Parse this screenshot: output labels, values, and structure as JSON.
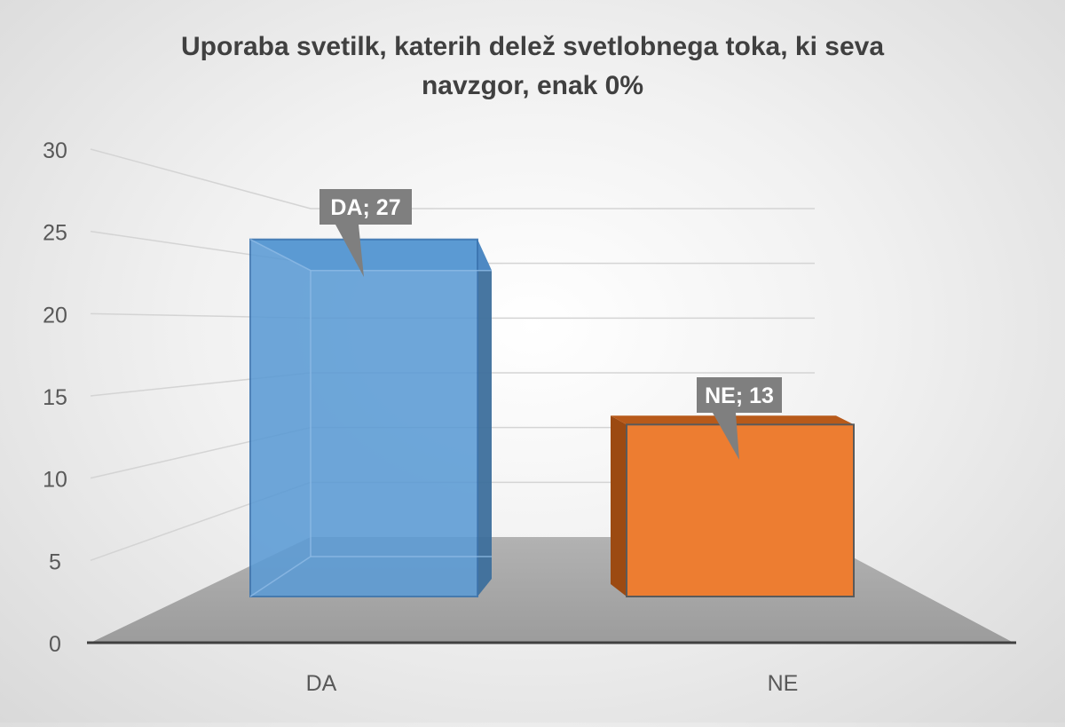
{
  "chart_data": {
    "type": "bar",
    "title": "Uporaba  svetilk, katerih delež svetlobnega toka, ki seva navzgor, enak 0%",
    "title_lines": [
      "Uporaba  svetilk, katerih delež svetlobnega toka, ki seva",
      "navzgor, enak 0%"
    ],
    "categories": [
      "DA",
      "NE"
    ],
    "values": [
      27,
      13
    ],
    "data_labels": [
      "DA; 27",
      "NE; 13"
    ],
    "y_ticks": [
      "0",
      "5",
      "10",
      "15",
      "20",
      "25",
      "30"
    ],
    "ylim": [
      0,
      30
    ],
    "xlabel": "",
    "ylabel": "",
    "grid": true,
    "legend": "none",
    "style": "3d-column",
    "colors": {
      "DA": "#5b9bd5",
      "NE": "#ed7d31",
      "label_bg": "#7f7f7f",
      "floor": "#a6a6a6",
      "axis": "#404040"
    }
  }
}
